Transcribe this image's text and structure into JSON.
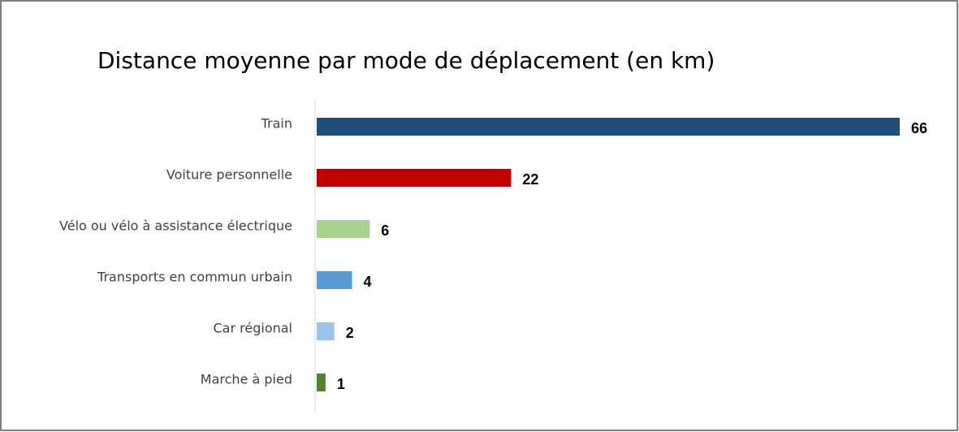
{
  "chart_data": {
    "type": "hbar",
    "title": "Distance moyenne par mode de déplacement (en km)",
    "categories": [
      "Train",
      "Voiture personnelle",
      "Vélo ou vélo à assistance électrique",
      "Transports en commun urbain",
      "Car régional",
      "Marche à pied"
    ],
    "values": [
      66,
      22,
      6,
      4,
      2,
      1
    ],
    "colors": [
      "#1f4e79",
      "#c00000",
      "#a9d18e",
      "#5b9bd5",
      "#9dc3e6",
      "#548235"
    ]
  }
}
